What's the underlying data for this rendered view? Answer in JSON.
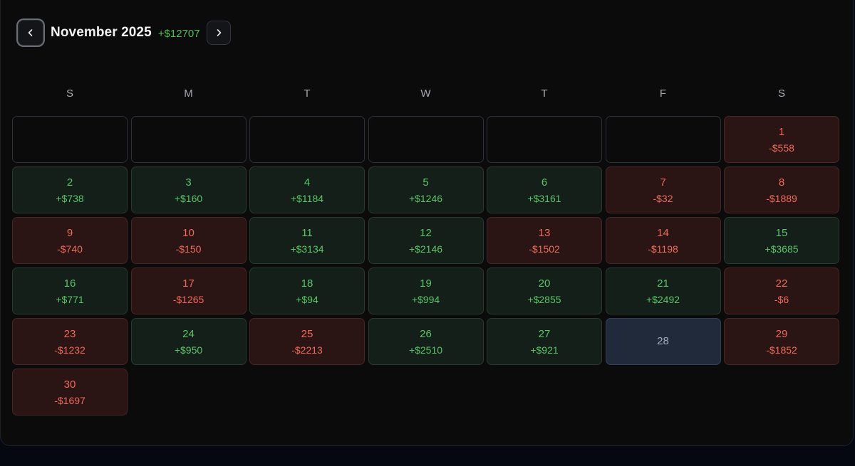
{
  "header": {
    "month_title": "November 2025",
    "month_total": "+$12707"
  },
  "colors": {
    "gain": "#5cc46a",
    "loss": "#ee6b5c",
    "today_bg": "#212a3b"
  },
  "weekdays": [
    "S",
    "M",
    "T",
    "W",
    "T",
    "F",
    "S"
  ],
  "days": [
    {
      "day": "1",
      "amount": "-$558",
      "status": "loss"
    },
    {
      "day": "2",
      "amount": "+$738",
      "status": "gain"
    },
    {
      "day": "3",
      "amount": "+$160",
      "status": "gain"
    },
    {
      "day": "4",
      "amount": "+$1184",
      "status": "gain"
    },
    {
      "day": "5",
      "amount": "+$1246",
      "status": "gain"
    },
    {
      "day": "6",
      "amount": "+$3161",
      "status": "gain"
    },
    {
      "day": "7",
      "amount": "-$32",
      "status": "loss"
    },
    {
      "day": "8",
      "amount": "-$1889",
      "status": "loss"
    },
    {
      "day": "9",
      "amount": "-$740",
      "status": "loss"
    },
    {
      "day": "10",
      "amount": "-$150",
      "status": "loss"
    },
    {
      "day": "11",
      "amount": "+$3134",
      "status": "gain"
    },
    {
      "day": "12",
      "amount": "+$2146",
      "status": "gain"
    },
    {
      "day": "13",
      "amount": "-$1502",
      "status": "loss"
    },
    {
      "day": "14",
      "amount": "-$1198",
      "status": "loss"
    },
    {
      "day": "15",
      "amount": "+$3685",
      "status": "gain"
    },
    {
      "day": "16",
      "amount": "+$771",
      "status": "gain"
    },
    {
      "day": "17",
      "amount": "-$1265",
      "status": "loss"
    },
    {
      "day": "18",
      "amount": "+$94",
      "status": "gain"
    },
    {
      "day": "19",
      "amount": "+$994",
      "status": "gain"
    },
    {
      "day": "20",
      "amount": "+$2855",
      "status": "gain"
    },
    {
      "day": "21",
      "amount": "+$2492",
      "status": "gain"
    },
    {
      "day": "22",
      "amount": "-$6",
      "status": "loss"
    },
    {
      "day": "23",
      "amount": "-$1232",
      "status": "loss"
    },
    {
      "day": "24",
      "amount": "+$950",
      "status": "gain"
    },
    {
      "day": "25",
      "amount": "-$2213",
      "status": "loss"
    },
    {
      "day": "26",
      "amount": "+$2510",
      "status": "gain"
    },
    {
      "day": "27",
      "amount": "+$921",
      "status": "gain"
    },
    {
      "day": "28",
      "amount": "",
      "status": "today"
    },
    {
      "day": "29",
      "amount": "-$1852",
      "status": "loss"
    },
    {
      "day": "30",
      "amount": "-$1697",
      "status": "loss"
    }
  ]
}
